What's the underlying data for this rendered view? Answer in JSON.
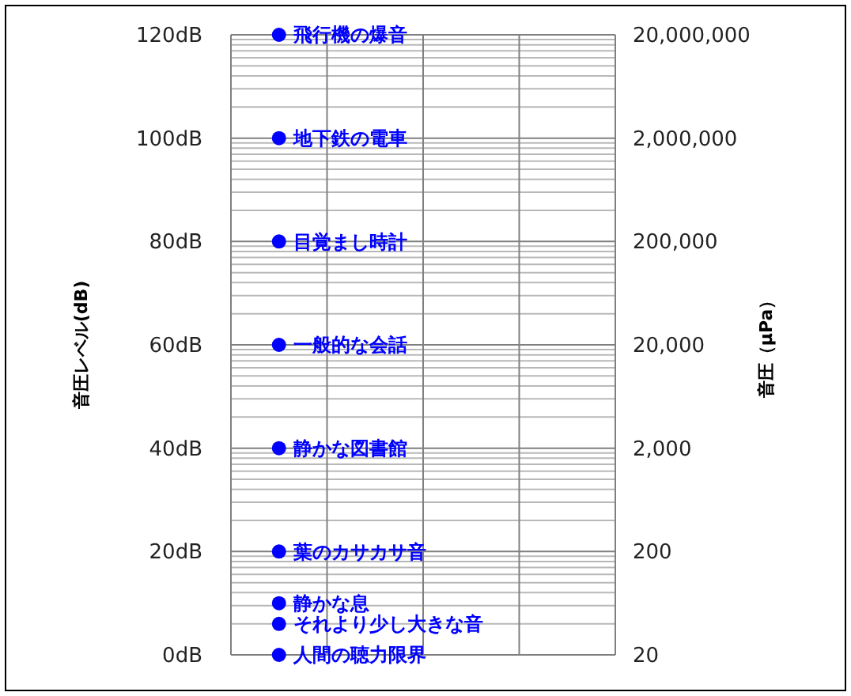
{
  "chart_data": {
    "type": "scatter",
    "ylabel": "音圧レベル(dB)",
    "y2label": "音圧（μPa）",
    "categories": [
      null,
      null,
      null,
      null
    ],
    "series": [
      {
        "name": "飛行機の爆音",
        "color": "#0000ff",
        "values": [
          120,
          null,
          null,
          null
        ]
      },
      {
        "name": "地下鉄の電車",
        "color": "#0000ff",
        "values": [
          100,
          null,
          null,
          null
        ]
      },
      {
        "name": "目覚まし時計",
        "color": "#0000ff",
        "values": [
          80,
          null,
          null,
          null
        ]
      },
      {
        "name": "一般的な会話",
        "color": "#0000ff",
        "values": [
          60,
          null,
          null,
          null
        ]
      },
      {
        "name": "静かな図書館",
        "color": "#0000ff",
        "values": [
          40,
          null,
          null,
          null
        ]
      },
      {
        "name": "葉のカサカサ音",
        "color": "#0000ff",
        "values": [
          20,
          null,
          null,
          null
        ]
      },
      {
        "name": "静かな息",
        "color": "#0000ff",
        "values": [
          10,
          null,
          null,
          null
        ]
      },
      {
        "name": "それより少し大きな音",
        "color": "#0000ff",
        "values": [
          6,
          null,
          null,
          null
        ]
      },
      {
        "name": "人間の聴力限界",
        "color": "#0000ff",
        "values": [
          0,
          null,
          null,
          null
        ]
      }
    ],
    "ylim": [
      0,
      120
    ],
    "yticks": [
      {
        "value": 0,
        "label": "0dB"
      },
      {
        "value": 20,
        "label": "20dB"
      },
      {
        "value": 40,
        "label": "40dB"
      },
      {
        "value": 60,
        "label": "60dB"
      },
      {
        "value": 80,
        "label": "80dB"
      },
      {
        "value": 100,
        "label": "100dB"
      },
      {
        "value": 120,
        "label": "120dB"
      }
    ],
    "y2lim": [
      20,
      20000000
    ],
    "log": "y2",
    "y2ticks": [
      {
        "value": 20,
        "label": "20"
      },
      {
        "value": 200,
        "label": "200"
      },
      {
        "value": 2000,
        "label": "2,000"
      },
      {
        "value": 20000,
        "label": "20,000"
      },
      {
        "value": 200000,
        "label": "200,000"
      },
      {
        "value": 2000000,
        "label": "2,000,000"
      },
      {
        "value": 20000000,
        "label": "20,000,000"
      }
    ],
    "grid": true,
    "marker": "circle"
  }
}
